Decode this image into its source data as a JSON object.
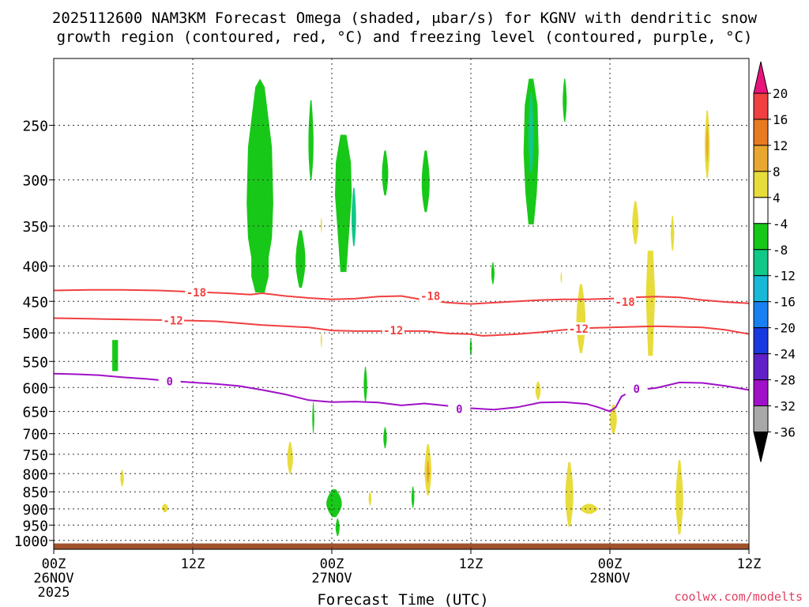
{
  "chart_data": {
    "type": "heatmap",
    "title_line1": "2025112600 NAM3KM Forecast Omega (shaded, μbar/s) for KGNV with dendritic snow",
    "title_line2": "growth region (contoured, red, °C) and freezing level (contoured, purple, °C)",
    "xlabel": "Forecast Time (UTC)",
    "credit": "coolwx.com/modelts",
    "x_axis": {
      "unit": "hours from 2025-11-26 00Z",
      "range": [
        0,
        60
      ],
      "ticks": [
        {
          "x": 0,
          "label": "00Z",
          "date": "26NOV",
          "year": "2025"
        },
        {
          "x": 12,
          "label": "12Z"
        },
        {
          "x": 24,
          "label": "00Z",
          "date": "27NOV"
        },
        {
          "x": 36,
          "label": "12Z"
        },
        {
          "x": 48,
          "label": "00Z",
          "date": "28NOV"
        },
        {
          "x": 60,
          "label": "12Z"
        }
      ]
    },
    "y_axis": {
      "unit": "hPa",
      "scale": "log-pressure",
      "range": [
        1030,
        200
      ],
      "ticks": [
        250,
        300,
        350,
        400,
        450,
        500,
        550,
        600,
        650,
        700,
        750,
        800,
        850,
        900,
        950,
        1000
      ]
    },
    "grid": true,
    "colorbar": {
      "position": "right",
      "labels": [
        "20",
        "16",
        "12",
        "8",
        "4",
        "-4",
        "-8",
        "-12",
        "-16",
        "-20",
        "-24",
        "-28",
        "-32",
        "-36"
      ],
      "bands": [
        {
          "lo": 20,
          "hi": 24,
          "color": "#e8147c"
        },
        {
          "lo": 16,
          "hi": 20,
          "color": "#f04040"
        },
        {
          "lo": 12,
          "hi": 16,
          "color": "#e87a20"
        },
        {
          "lo": 8,
          "hi": 12,
          "color": "#e8a830"
        },
        {
          "lo": 4,
          "hi": 8,
          "color": "#e8dc3c"
        },
        {
          "lo": -4,
          "hi": 4,
          "color": "#ffffff"
        },
        {
          "lo": -8,
          "hi": -4,
          "color": "#18c818"
        },
        {
          "lo": -12,
          "hi": -8,
          "color": "#10c888"
        },
        {
          "lo": -16,
          "hi": -12,
          "color": "#18b8d8"
        },
        {
          "lo": -20,
          "hi": -16,
          "color": "#1880f0"
        },
        {
          "lo": -24,
          "hi": -20,
          "color": "#1838e0"
        },
        {
          "lo": -28,
          "hi": -24,
          "color": "#6020c8"
        },
        {
          "lo": -32,
          "hi": -28,
          "color": "#a010c8"
        },
        {
          "lo": -36,
          "hi": -32,
          "color": "#a8a8a8"
        },
        {
          "lo": -40,
          "hi": -36,
          "color": "#000000"
        }
      ]
    },
    "ground": {
      "from_hpa": 1010,
      "to_hpa": 1030,
      "color": "#a0522d"
    },
    "contours": [
      {
        "value": "-18",
        "color": "#f04040",
        "points": [
          [
            0,
            434
          ],
          [
            3,
            433
          ],
          [
            6,
            433
          ],
          [
            9,
            434
          ],
          [
            12,
            436
          ],
          [
            15,
            438
          ],
          [
            17,
            440
          ],
          [
            18,
            438
          ],
          [
            20,
            442
          ],
          [
            22,
            445
          ],
          [
            24,
            447
          ],
          [
            26,
            446
          ],
          [
            28,
            443
          ],
          [
            30,
            442
          ],
          [
            32,
            448
          ],
          [
            34,
            452
          ],
          [
            36,
            454
          ],
          [
            38,
            452
          ],
          [
            40,
            450
          ],
          [
            42,
            448
          ],
          [
            44,
            447
          ],
          [
            46,
            447
          ],
          [
            48,
            446
          ],
          [
            50,
            444
          ],
          [
            52,
            443
          ],
          [
            54,
            444
          ],
          [
            56,
            448
          ],
          [
            58,
            451
          ],
          [
            60,
            453
          ]
        ],
        "labels": [
          {
            "x": 12.3,
            "p": 437
          },
          {
            "x": 32.5,
            "p": 442
          },
          {
            "x": 49.3,
            "p": 451
          }
        ]
      },
      {
        "value": "-12",
        "color": "#f04040",
        "points": [
          [
            0,
            476
          ],
          [
            3,
            477
          ],
          [
            6,
            478
          ],
          [
            9,
            479
          ],
          [
            12,
            480
          ],
          [
            14,
            481
          ],
          [
            16,
            484
          ],
          [
            18,
            487
          ],
          [
            20,
            489
          ],
          [
            22,
            491
          ],
          [
            24,
            496
          ],
          [
            26,
            497
          ],
          [
            28,
            497
          ],
          [
            30,
            497
          ],
          [
            32,
            497
          ],
          [
            34,
            501
          ],
          [
            36,
            502
          ],
          [
            37,
            505
          ],
          [
            38,
            504
          ],
          [
            40,
            502
          ],
          [
            42,
            499
          ],
          [
            44,
            495
          ],
          [
            46,
            492
          ],
          [
            48,
            491
          ],
          [
            50,
            490
          ],
          [
            52,
            489
          ],
          [
            54,
            490
          ],
          [
            56,
            491
          ],
          [
            58,
            495
          ],
          [
            60,
            502
          ]
        ],
        "labels": [
          {
            "x": 10.3,
            "p": 480
          },
          {
            "x": 29.3,
            "p": 496
          },
          {
            "x": 45.3,
            "p": 493
          }
        ]
      },
      {
        "value": "0",
        "color": "#a010c8",
        "points": [
          [
            0,
            573
          ],
          [
            2,
            574
          ],
          [
            4,
            576
          ],
          [
            6,
            580
          ],
          [
            8,
            583
          ],
          [
            10,
            587
          ],
          [
            12,
            590
          ],
          [
            14,
            593
          ],
          [
            16,
            597
          ],
          [
            18,
            605
          ],
          [
            20,
            614
          ],
          [
            22,
            626
          ],
          [
            24,
            630
          ],
          [
            26,
            629
          ],
          [
            28,
            631
          ],
          [
            30,
            637
          ],
          [
            32,
            633
          ],
          [
            34,
            638
          ],
          [
            36,
            643
          ],
          [
            38,
            646
          ],
          [
            40,
            641
          ],
          [
            42,
            631
          ],
          [
            44,
            630
          ],
          [
            46,
            634
          ],
          [
            47,
            641
          ],
          [
            48,
            650
          ],
          [
            48.5,
            641
          ],
          [
            49,
            618
          ],
          [
            50,
            606
          ],
          [
            52,
            601
          ],
          [
            54,
            590
          ],
          [
            56,
            591
          ],
          [
            58,
            597
          ],
          [
            60,
            605
          ]
        ],
        "labels": [
          {
            "x": 10.0,
            "p": 588
          },
          {
            "x": 35.0,
            "p": 645
          },
          {
            "x": 50.3,
            "p": 603
          }
        ]
      }
    ],
    "shaded_regions": [
      {
        "value": -6,
        "color": "#18c818",
        "x": 17.8,
        "y_top": 214,
        "y_bot": 437,
        "w": 2.3,
        "nodes": [
          [
            6,
            0.35
          ],
          [
            55,
            0.9
          ],
          [
            110,
            1.0
          ],
          [
            150,
            0.9
          ],
          [
            175,
            0.65
          ],
          [
            200,
            0.65
          ],
          [
            223,
            0.35
          ]
        ]
      },
      {
        "value": -6,
        "color": "#18c818",
        "x": 22.2,
        "y_top": 230,
        "y_bot": 300,
        "w": 0.45
      },
      {
        "value": -6,
        "color": "#18c818",
        "x": 21.3,
        "y_top": 355,
        "y_bot": 430,
        "w": 0.85
      },
      {
        "value": -6,
        "color": "#18c818",
        "x": 25.0,
        "y_top": 258,
        "y_bot": 408,
        "w": 1.45,
        "nodes": [
          [
            0,
            0.35
          ],
          [
            25,
            0.9
          ],
          [
            58,
            1.0
          ],
          [
            70,
            0.9
          ],
          [
            150,
            0.35
          ]
        ]
      },
      {
        "value": -10,
        "color": "#10c888",
        "x": 25.9,
        "y_top": 308,
        "y_bot": 374,
        "w": 0.4
      },
      {
        "value": -6,
        "color": "#18c818",
        "x": 28.6,
        "y_top": 272,
        "y_bot": 316,
        "w": 0.55
      },
      {
        "value": -6,
        "color": "#18c818",
        "x": 32.1,
        "y_top": 272,
        "y_bot": 334,
        "w": 0.7
      },
      {
        "value": -6,
        "color": "#18c818",
        "x": 41.2,
        "y_top": 214,
        "y_bot": 348,
        "w": 1.3,
        "nodes": [
          [
            0,
            0.3
          ],
          [
            20,
            0.85
          ],
          [
            60,
            1.0
          ],
          [
            100,
            0.75
          ],
          [
            134,
            0.35
          ]
        ]
      },
      {
        "value": -10,
        "color": "#10c888",
        "x": 41.2,
        "y_top": 224,
        "y_bot": 293,
        "w": 0.45
      },
      {
        "value": -6,
        "color": "#18c818",
        "x": 44.1,
        "y_top": 214,
        "y_bot": 247,
        "w": 0.35
      },
      {
        "value": -6,
        "color": "#18c818",
        "x": 37.9,
        "y_top": 395,
        "y_bot": 425,
        "w": 0.28
      },
      {
        "value": -6,
        "color": "#18c818",
        "x": 5.3,
        "y_top": 512,
        "y_bot": 568,
        "w": 0.5,
        "shape": "rect"
      },
      {
        "value": -6,
        "color": "#18c818",
        "x": 26.9,
        "y_top": 560,
        "y_bot": 630,
        "w": 0.3
      },
      {
        "value": -6,
        "color": "#18c818",
        "x": 22.4,
        "y_top": 630,
        "y_bot": 700,
        "w": 0.17
      },
      {
        "value": -6,
        "color": "#18c818",
        "x": 28.6,
        "y_top": 685,
        "y_bot": 735,
        "w": 0.3
      },
      {
        "value": -6,
        "color": "#18c818",
        "x": 24.2,
        "y_top": 843,
        "y_bot": 925,
        "w": 1.35
      },
      {
        "value": -6,
        "color": "#18c818",
        "x": 24.5,
        "y_top": 930,
        "y_bot": 985,
        "w": 0.35
      },
      {
        "value": -6,
        "color": "#18c818",
        "x": 31.0,
        "y_top": 835,
        "y_bot": 897,
        "w": 0.25
      },
      {
        "value": -6,
        "color": "#18c818",
        "x": 36.0,
        "y_top": 510,
        "y_bot": 540,
        "w": 0.18
      },
      {
        "value": 5,
        "color": "#e8dc3c",
        "x": 56.4,
        "y_top": 238,
        "y_bot": 298,
        "w": 0.45
      },
      {
        "value": 9,
        "color": "#e8a830",
        "x": 56.4,
        "y_top": 250,
        "y_bot": 282,
        "w": 0.2
      },
      {
        "value": 5,
        "color": "#e8dc3c",
        "x": 50.2,
        "y_top": 322,
        "y_bot": 372,
        "w": 0.55
      },
      {
        "value": 5,
        "color": "#e8dc3c",
        "x": 53.4,
        "y_top": 338,
        "y_bot": 380,
        "w": 0.3
      },
      {
        "value": 5,
        "color": "#e8dc3c",
        "x": 51.5,
        "y_top": 380,
        "y_bot": 540,
        "w": 0.8,
        "nodes": [
          [
            0,
            0.6
          ],
          [
            60,
            1.0
          ],
          [
            100,
            0.8
          ],
          [
            160,
            0.5
          ]
        ]
      },
      {
        "value": 5,
        "color": "#e8dc3c",
        "x": 45.5,
        "y_top": 425,
        "y_bot": 535,
        "w": 0.8
      },
      {
        "value": 5,
        "color": "#e8dc3c",
        "x": 23.1,
        "y_top": 340,
        "y_bot": 358,
        "w": 0.12
      },
      {
        "value": 5,
        "color": "#e8dc3c",
        "x": 20.4,
        "y_top": 720,
        "y_bot": 800,
        "w": 0.5
      },
      {
        "value": 5,
        "color": "#e8dc3c",
        "x": 5.9,
        "y_top": 790,
        "y_bot": 835,
        "w": 0.3
      },
      {
        "value": 5,
        "color": "#e8dc3c",
        "x": 9.6,
        "y_top": 885,
        "y_bot": 910,
        "w": 0.55
      },
      {
        "value": 5,
        "color": "#e8dc3c",
        "x": 32.3,
        "y_top": 725,
        "y_bot": 860,
        "w": 0.6
      },
      {
        "value": 9,
        "color": "#e8a830",
        "x": 32.3,
        "y_top": 765,
        "y_bot": 825,
        "w": 0.25
      },
      {
        "value": 5,
        "color": "#e8dc3c",
        "x": 27.3,
        "y_top": 850,
        "y_bot": 890,
        "w": 0.25
      },
      {
        "value": 5,
        "color": "#e8dc3c",
        "x": 41.8,
        "y_top": 588,
        "y_bot": 625,
        "w": 0.45
      },
      {
        "value": 5,
        "color": "#e8dc3c",
        "x": 48.3,
        "y_top": 635,
        "y_bot": 700,
        "w": 0.6
      },
      {
        "value": 5,
        "color": "#e8dc3c",
        "x": 44.5,
        "y_top": 770,
        "y_bot": 955,
        "w": 0.7
      },
      {
        "value": 5,
        "color": "#e8dc3c",
        "x": 46.2,
        "y_top": 885,
        "y_bot": 915,
        "w": 1.5
      },
      {
        "value": 5,
        "color": "#e8dc3c",
        "x": 54.0,
        "y_top": 765,
        "y_bot": 980,
        "w": 0.65
      },
      {
        "value": 5,
        "color": "#e8dc3c",
        "x": 23.1,
        "y_top": 500,
        "y_bot": 525,
        "w": 0.12
      },
      {
        "value": 5,
        "color": "#e8dc3c",
        "x": 43.8,
        "y_top": 408,
        "y_bot": 423,
        "w": 0.12
      }
    ]
  }
}
